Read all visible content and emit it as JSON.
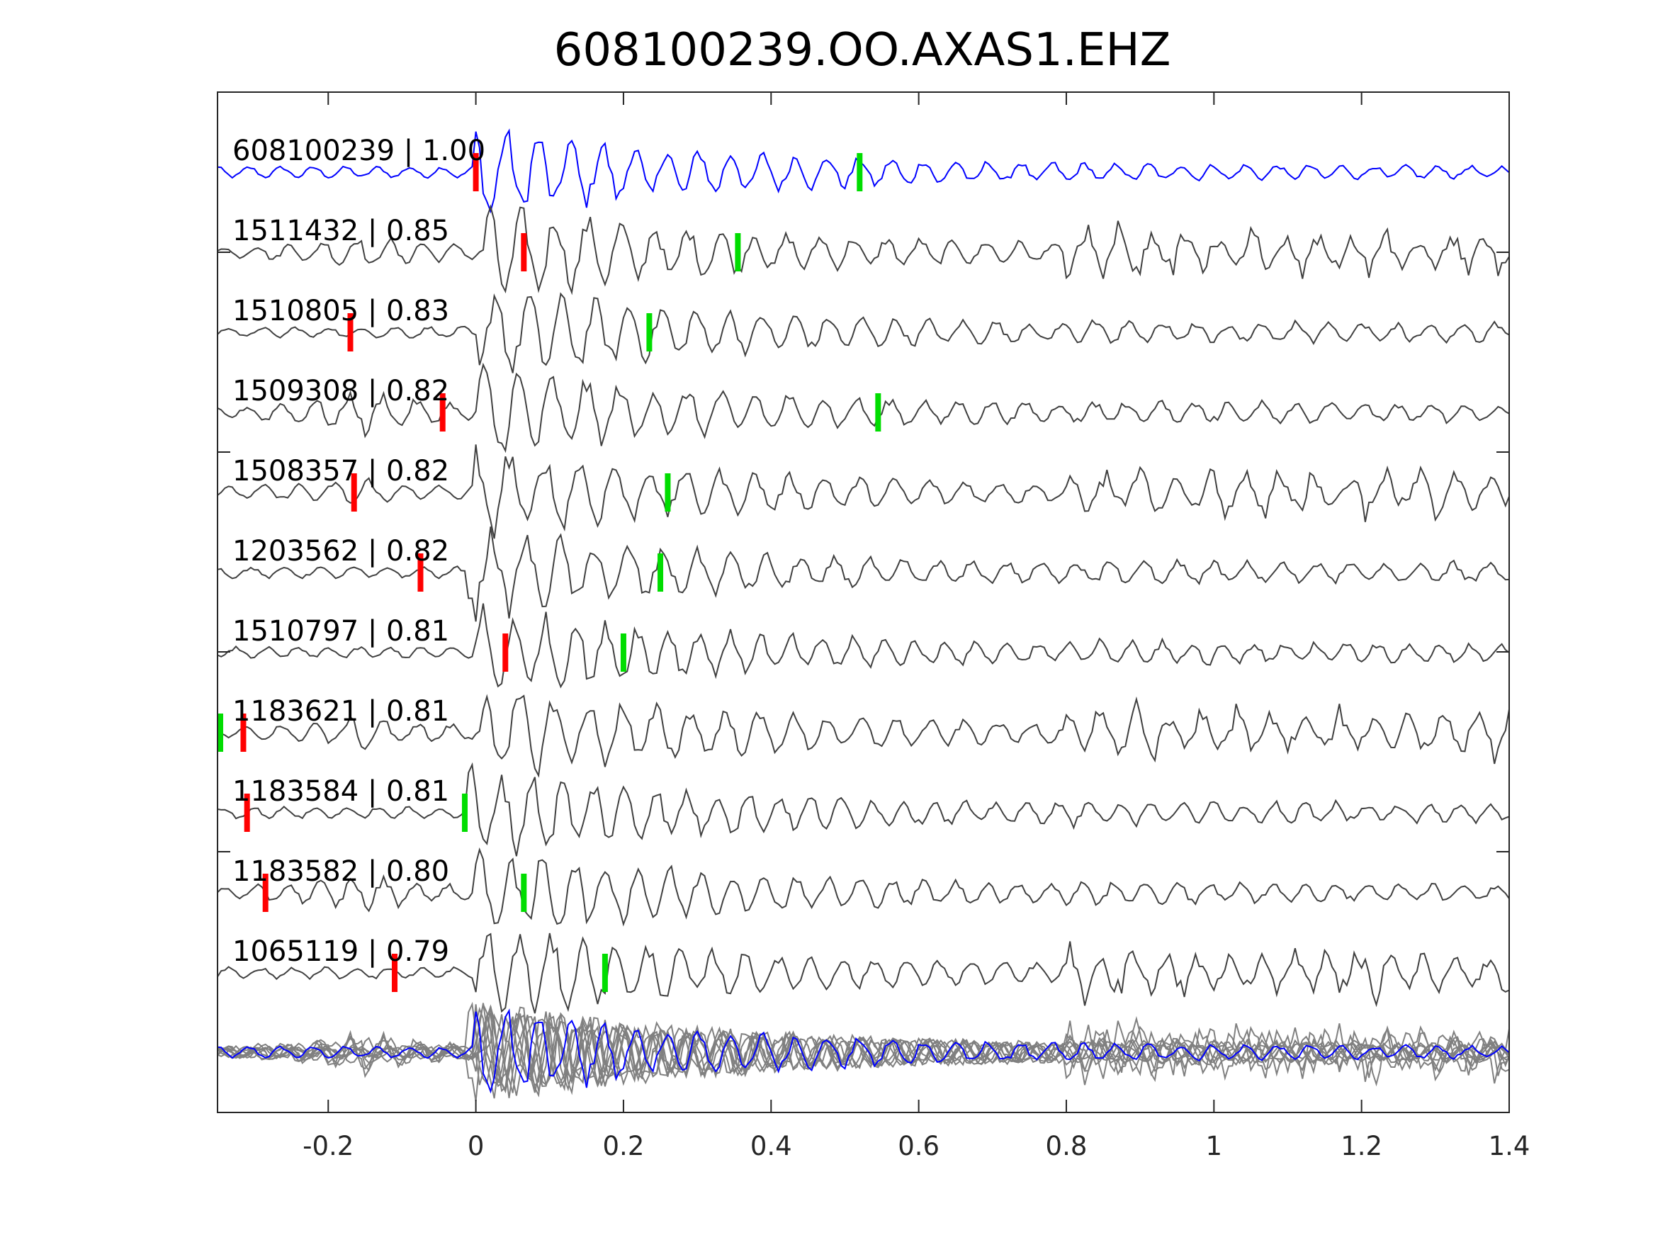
{
  "chart_data": {
    "type": "line",
    "title": "608100239.OO.AXAS1.EHZ",
    "xlabel": "",
    "ylabel": "",
    "xlim": [
      -0.35,
      1.4
    ],
    "xticks": [
      -0.2,
      0,
      0.2,
      0.4,
      0.6,
      0.8,
      1,
      1.2,
      1.4
    ],
    "xtick_labels": [
      "-0.2",
      "0",
      "0.2",
      "0.4",
      "0.6",
      "0.8",
      "1",
      "1.2",
      "1.4"
    ],
    "grid": false,
    "colors": {
      "template": "#0000ff",
      "match": "#404040",
      "stack": "#808080",
      "p_pick": "#ff0000",
      "s_pick": "#00dd00"
    },
    "traces": [
      {
        "label": "608100239 | 1.00",
        "p_pick": 0.0,
        "s_pick": 0.52,
        "template": true
      },
      {
        "label": "1511432 | 0.85",
        "p_pick": 0.065,
        "s_pick": 0.355
      },
      {
        "label": "1510805 | 0.83",
        "p_pick": -0.17,
        "s_pick": 0.235
      },
      {
        "label": "1509308 | 0.82",
        "p_pick": -0.045,
        "s_pick": 0.545
      },
      {
        "label": "1508357 | 0.82",
        "p_pick": -0.165,
        "s_pick": 0.26
      },
      {
        "label": "1203562 | 0.82",
        "p_pick": -0.075,
        "s_pick": 0.25
      },
      {
        "label": "1510797 | 0.81",
        "p_pick": 0.04,
        "s_pick": 0.2
      },
      {
        "label": "1183621 | 0.81",
        "p_pick": -0.315,
        "s_pick": -0.35
      },
      {
        "label": "1183584 | 0.81",
        "p_pick": -0.31,
        "s_pick": -0.015
      },
      {
        "label": "1183582 | 0.80",
        "p_pick": -0.285,
        "s_pick": 0.065
      },
      {
        "label": "1065119 | 0.79",
        "p_pick": -0.11,
        "s_pick": 0.175
      }
    ]
  }
}
